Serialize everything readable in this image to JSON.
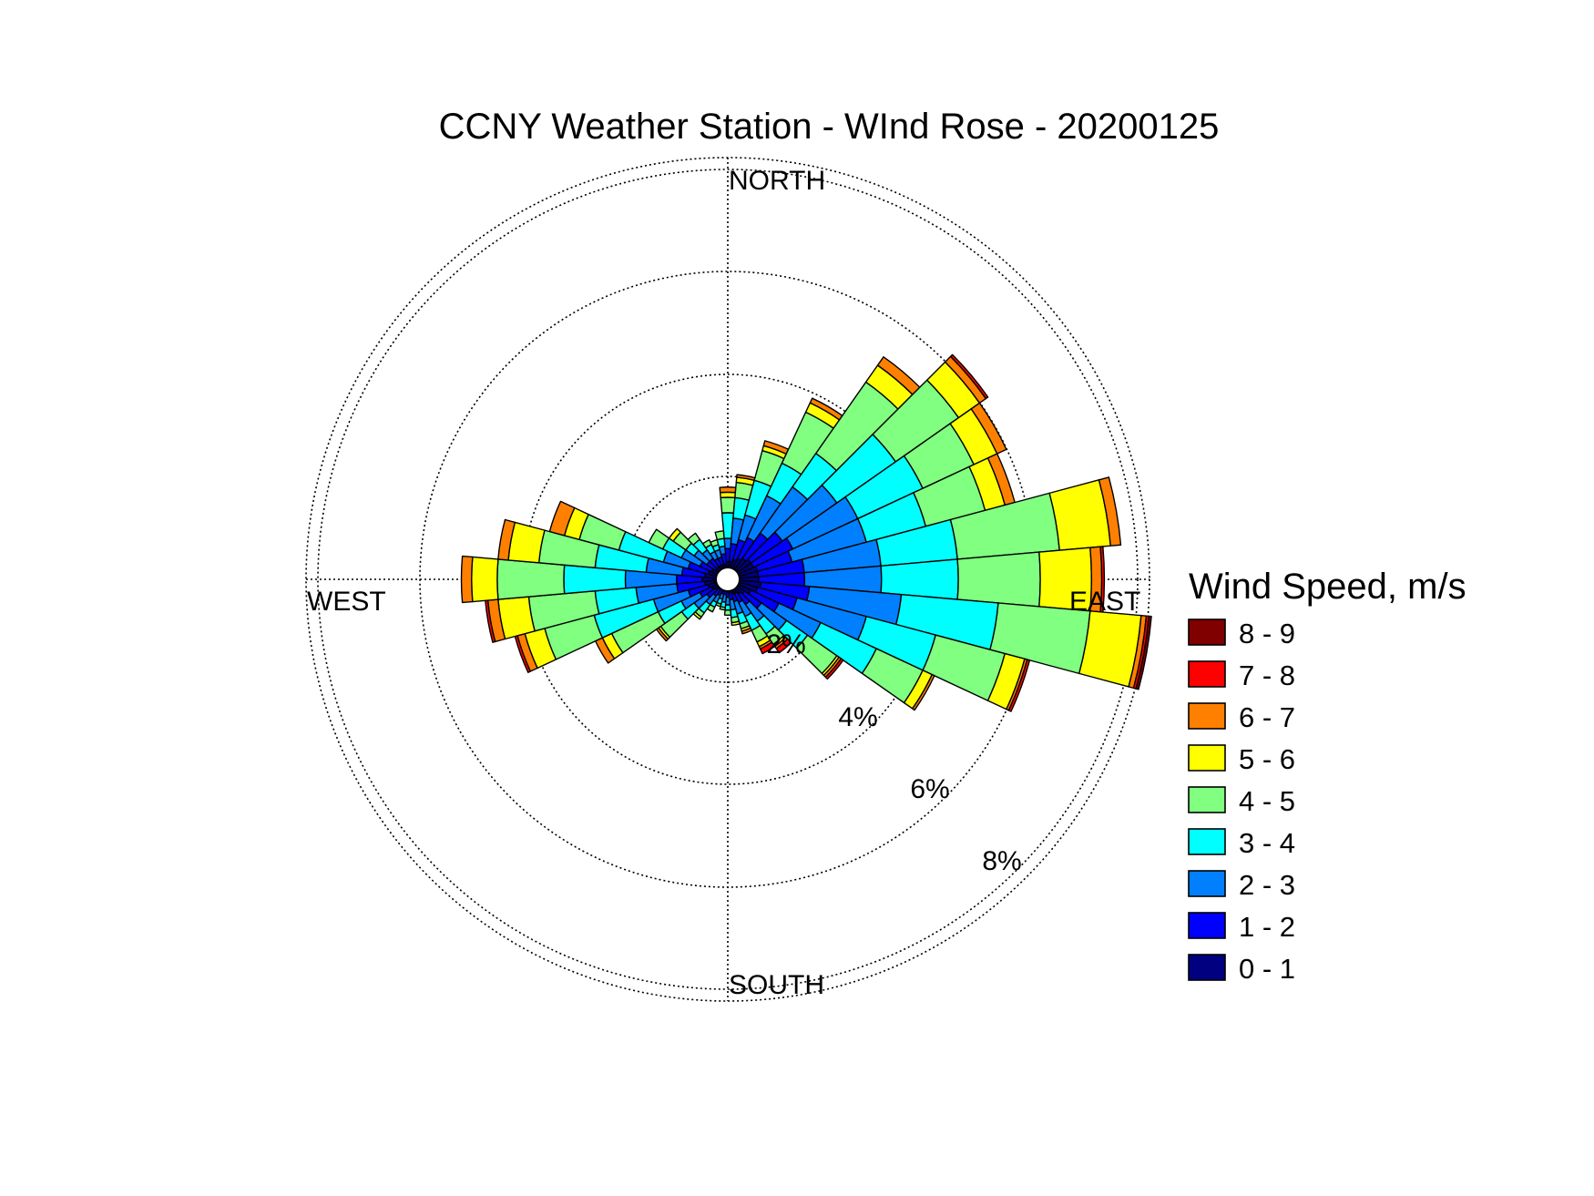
{
  "chart_data": {
    "type": "windrose",
    "title": "CCNY Weather Station - WInd Rose - 20200125",
    "directions": {
      "north": "NORTH",
      "east": "EAST",
      "south": "SOUTH",
      "west": "WEST"
    },
    "radial_labels": [
      "2%",
      "4%",
      "6%",
      "8%"
    ],
    "radial_ticks": [
      2,
      4,
      6,
      8
    ],
    "rmax": 8.3,
    "legend_title": "Wind Speed, m/s",
    "bins": [
      {
        "label": "0 - 1",
        "color": "#000080"
      },
      {
        "label": "1 - 2",
        "color": "#0000ff"
      },
      {
        "label": "2 - 3",
        "color": "#0080ff"
      },
      {
        "label": "3 - 4",
        "color": "#00ffff"
      },
      {
        "label": "4 - 5",
        "color": "#80ff80"
      },
      {
        "label": "5 - 6",
        "color": "#ffff00"
      },
      {
        "label": "6 - 7",
        "color": "#ff8000"
      },
      {
        "label": "7 - 8",
        "color": "#ff0000"
      },
      {
        "label": "8 - 9",
        "color": "#800000"
      }
    ],
    "sector_width_deg": 10,
    "sectors": [
      {
        "direction_deg": 0,
        "cumulative": [
          0.35,
          0.6,
          0.8,
          1.3,
          1.6,
          1.7,
          1.8
        ]
      },
      {
        "direction_deg": 10,
        "cumulative": [
          0.35,
          0.7,
          1.2,
          1.6,
          1.9,
          2.0,
          2.05
        ]
      },
      {
        "direction_deg": 20,
        "cumulative": [
          0.4,
          0.8,
          1.3,
          2.0,
          2.6,
          2.7,
          2.8
        ]
      },
      {
        "direction_deg": 30,
        "cumulative": [
          0.45,
          0.9,
          1.8,
          2.5,
          3.6,
          3.8,
          3.9
        ]
      },
      {
        "direction_deg": 40,
        "cumulative": [
          0.5,
          1.1,
          2.2,
          3.0,
          4.7,
          5.1,
          5.3
        ]
      },
      {
        "direction_deg": 50,
        "cumulative": [
          0.55,
          1.3,
          2.6,
          4.0,
          5.5,
          6.0,
          6.15,
          6.2
        ]
      },
      {
        "direction_deg": 60,
        "cumulative": [
          0.55,
          1.4,
          2.8,
          4.2,
          5.3,
          5.8,
          6.0
        ]
      },
      {
        "direction_deg": 70,
        "cumulative": [
          0.6,
          1.3,
          2.8,
          4.0,
          5.2,
          5.6,
          5.8
        ]
      },
      {
        "direction_deg": 80,
        "cumulative": [
          0.6,
          1.5,
          3.0,
          4.5,
          6.5,
          7.5,
          7.7
        ]
      },
      {
        "direction_deg": 90,
        "cumulative": [
          0.6,
          1.5,
          3.0,
          4.5,
          6.1,
          7.1,
          7.3,
          7.35
        ]
      },
      {
        "direction_deg": 100,
        "cumulative": [
          0.65,
          1.6,
          3.4,
          5.3,
          7.1,
          8.1,
          8.2,
          8.25,
          8.3
        ]
      },
      {
        "direction_deg": 110,
        "cumulative": [
          0.6,
          1.4,
          2.8,
          4.2,
          5.6,
          6.0,
          6.05,
          6.1
        ]
      },
      {
        "direction_deg": 120,
        "cumulative": [
          0.5,
          1.1,
          2.0,
          3.2,
          4.2,
          4.4,
          4.45
        ]
      },
      {
        "direction_deg": 130,
        "cumulative": [
          0.4,
          0.8,
          1.4,
          1.9,
          2.6,
          2.65,
          2.7,
          2.75
        ]
      },
      {
        "direction_deg": 140,
        "cumulative": [
          0.35,
          0.6,
          1.0,
          1.3,
          1.55,
          1.6,
          1.65,
          1.75
        ]
      },
      {
        "direction_deg": 150,
        "cumulative": [
          0.3,
          0.5,
          0.8,
          1.1,
          1.35,
          1.45,
          1.5,
          1.6
        ]
      },
      {
        "direction_deg": 160,
        "cumulative": [
          0.3,
          0.45,
          0.7,
          0.9,
          1.0,
          1.05,
          1.1
        ]
      },
      {
        "direction_deg": 170,
        "cumulative": [
          0.25,
          0.4,
          0.6,
          0.75,
          0.85,
          0.9
        ]
      },
      {
        "direction_deg": 180,
        "cumulative": [
          0.2,
          0.35,
          0.5,
          0.6,
          0.7
        ]
      },
      {
        "direction_deg": 190,
        "cumulative": [
          0.2,
          0.3,
          0.45,
          0.55,
          0.6
        ]
      },
      {
        "direction_deg": 200,
        "cumulative": [
          0.2,
          0.3,
          0.4,
          0.5,
          0.55
        ]
      },
      {
        "direction_deg": 210,
        "cumulative": [
          0.2,
          0.35,
          0.5,
          0.6,
          0.7
        ]
      },
      {
        "direction_deg": 220,
        "cumulative": [
          0.25,
          0.4,
          0.6,
          0.8,
          0.9,
          0.95
        ]
      },
      {
        "direction_deg": 230,
        "cumulative": [
          0.3,
          0.5,
          0.8,
          1.1,
          1.6,
          1.65,
          1.7
        ]
      },
      {
        "direction_deg": 240,
        "cumulative": [
          0.35,
          0.6,
          1.0,
          1.5,
          2.5,
          2.7,
          2.85
        ]
      },
      {
        "direction_deg": 250,
        "cumulative": [
          0.4,
          0.8,
          1.5,
          2.7,
          3.7,
          4.1,
          4.25,
          4.3
        ]
      },
      {
        "direction_deg": 260,
        "cumulative": [
          0.45,
          1.0,
          1.8,
          2.6,
          3.9,
          4.5,
          4.7,
          4.75
        ]
      },
      {
        "direction_deg": 270,
        "cumulative": [
          0.5,
          1.0,
          2.0,
          3.2,
          4.5,
          5.0,
          5.2
        ]
      },
      {
        "direction_deg": 280,
        "cumulative": [
          0.45,
          0.9,
          1.6,
          2.6,
          3.7,
          4.3,
          4.5
        ]
      },
      {
        "direction_deg": 290,
        "cumulative": [
          0.4,
          0.8,
          1.3,
          2.2,
          3.0,
          3.3,
          3.6
        ]
      },
      {
        "direction_deg": 300,
        "cumulative": [
          0.35,
          0.6,
          1.0,
          1.4,
          1.7
        ]
      },
      {
        "direction_deg": 310,
        "cumulative": [
          0.3,
          0.5,
          0.8,
          1.0,
          1.3,
          1.4
        ]
      },
      {
        "direction_deg": 320,
        "cumulative": [
          0.3,
          0.5,
          0.7,
          0.95,
          1.1
        ]
      },
      {
        "direction_deg": 330,
        "cumulative": [
          0.3,
          0.45,
          0.6,
          0.75,
          0.85
        ]
      },
      {
        "direction_deg": 340,
        "cumulative": [
          0.3,
          0.45,
          0.6,
          0.7,
          0.8
        ]
      },
      {
        "direction_deg": 350,
        "cumulative": [
          0.3,
          0.5,
          0.65,
          0.8,
          0.95
        ]
      }
    ]
  }
}
